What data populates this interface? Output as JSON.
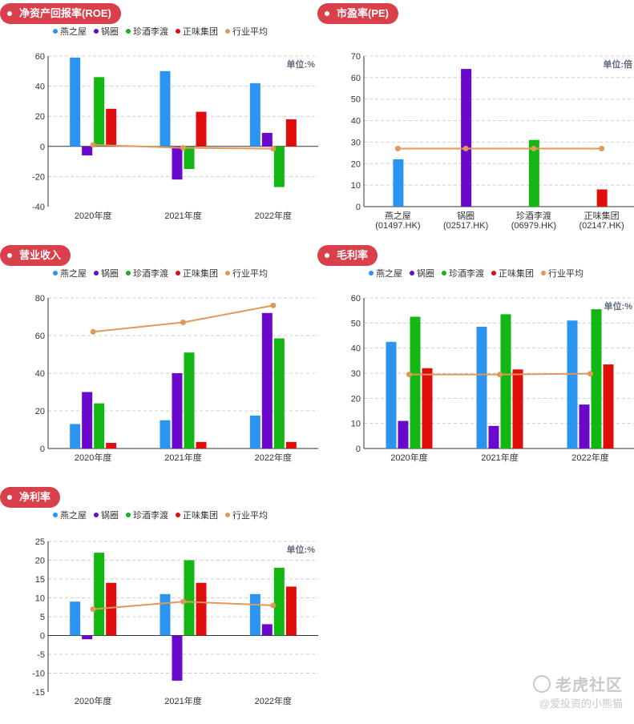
{
  "colors": {
    "pill": "#d9404b",
    "series": [
      "#2b93f0",
      "#6a09cc",
      "#13b713",
      "#e00d0d"
    ],
    "industry": "#e0995a"
  },
  "legend": [
    "燕之屋",
    "锅圈",
    "珍酒李渡",
    "正味集团",
    "行业平均"
  ],
  "panels": [
    {
      "id": "roe",
      "title": "净资产回报率(ROE)",
      "unit": "单位:%",
      "chart_data": {
        "type": "bar",
        "categories": [
          "2020年度",
          "2021年度",
          "2022年度"
        ],
        "ylim": [
          -40,
          60
        ],
        "yticks": [
          60,
          40,
          20,
          0,
          -20,
          -40
        ],
        "series": [
          {
            "name": "燕之屋",
            "values": [
              59,
              50,
              42
            ]
          },
          {
            "name": "锅圈",
            "values": [
              -6,
              -22,
              9
            ]
          },
          {
            "name": "珍酒李渡",
            "values": [
              46,
              -15,
              -27
            ]
          },
          {
            "name": "正味集团",
            "values": [
              25,
              23,
              18
            ]
          }
        ],
        "line": {
          "name": "行业平均",
          "values": [
            1,
            -1,
            -1.5
          ]
        }
      }
    },
    {
      "id": "pe",
      "title": "市盈率(PE)",
      "unit": "单位:倍",
      "chart_data": {
        "type": "bar",
        "categories": [
          "燕之屋\n(01497.HK)",
          "锅圈\n(02517.HK)",
          "珍酒李渡\n(06979.HK)",
          "正味集团\n(02147.HK)"
        ],
        "ylim": [
          0,
          70
        ],
        "yticks": [
          70,
          60,
          50,
          40,
          30,
          20,
          10,
          0
        ],
        "values": [
          22,
          64,
          31,
          8
        ],
        "line": {
          "name": "行业平均",
          "values": [
            27,
            27,
            27,
            27
          ]
        }
      }
    },
    {
      "id": "revenue",
      "title": "营业收入",
      "unit": "",
      "chart_data": {
        "type": "bar",
        "categories": [
          "2020年度",
          "2021年度",
          "2022年度"
        ],
        "ylim": [
          0,
          80
        ],
        "yticks": [
          80,
          60,
          40,
          20,
          0
        ],
        "series": [
          {
            "name": "燕之屋",
            "values": [
              13,
              15,
              17.5
            ]
          },
          {
            "name": "锅圈",
            "values": [
              30,
              40,
              72
            ]
          },
          {
            "name": "珍酒李渡",
            "values": [
              24,
              51,
              58.5
            ]
          },
          {
            "name": "正味集团",
            "values": [
              3,
              3.5,
              3.5
            ]
          }
        ],
        "line": {
          "name": "行业平均",
          "values": [
            62,
            67,
            76
          ]
        }
      }
    },
    {
      "id": "gross",
      "title": "毛利率",
      "unit": "单位:%",
      "chart_data": {
        "type": "bar",
        "categories": [
          "2020年度",
          "2021年度",
          "2022年度"
        ],
        "ylim": [
          0,
          60
        ],
        "yticks": [
          60,
          50,
          40,
          30,
          20,
          10,
          0
        ],
        "series": [
          {
            "name": "燕之屋",
            "values": [
              42.5,
              48.5,
              51
            ]
          },
          {
            "name": "锅圈",
            "values": [
              11,
              9,
              17.5
            ]
          },
          {
            "name": "珍酒李渡",
            "values": [
              52.5,
              53.5,
              55.5
            ]
          },
          {
            "name": "正味集团",
            "values": [
              32,
              31.5,
              33.5
            ]
          }
        ],
        "line": {
          "name": "行业平均",
          "values": [
            29.5,
            29.5,
            29.8
          ]
        }
      }
    },
    {
      "id": "netmargin",
      "title": "净利率",
      "unit": "单位:%",
      "chart_data": {
        "type": "bar",
        "categories": [
          "2020年度",
          "2021年度",
          "2022年度"
        ],
        "ylim": [
          -15,
          25
        ],
        "yticks": [
          25,
          20,
          15,
          10,
          5,
          0,
          -5,
          -10,
          -15
        ],
        "series": [
          {
            "name": "燕之屋",
            "values": [
              9,
              11,
              11
            ]
          },
          {
            "name": "锅圈",
            "values": [
              -1,
              -12,
              3
            ]
          },
          {
            "name": "珍酒李渡",
            "values": [
              22,
              20,
              18
            ]
          },
          {
            "name": "正味集团",
            "values": [
              14,
              14,
              13
            ]
          }
        ],
        "line": {
          "name": "行业平均",
          "values": [
            7,
            9,
            8
          ]
        }
      }
    }
  ],
  "watermark": {
    "brand": "老虎社区",
    "user": "@爱投资的小熊猫"
  }
}
